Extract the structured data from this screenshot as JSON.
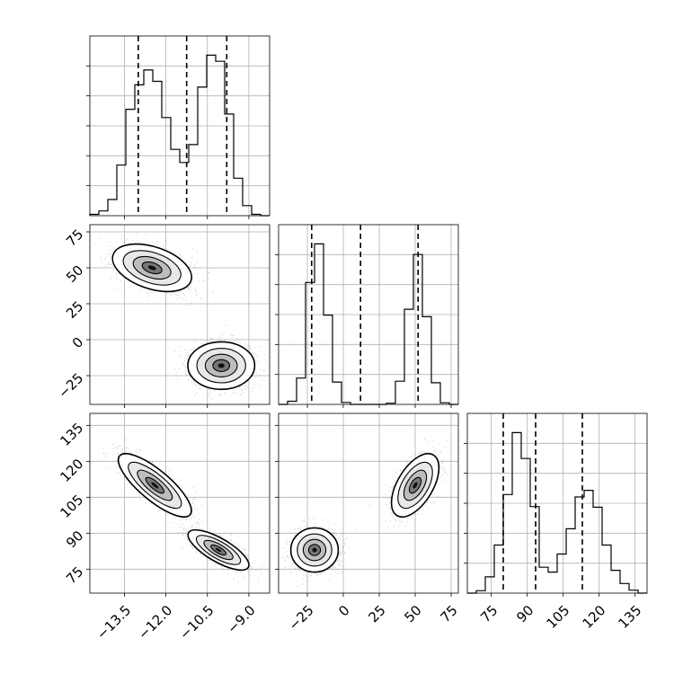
{
  "chart_data": {
    "type": "corner",
    "grid": true,
    "parameters": [
      {
        "range": [
          -14.75,
          -8.25
        ],
        "ticks": [
          -13.5,
          -12.0,
          -10.5,
          -9.0
        ],
        "tick_labels": [
          "−13.5",
          "−12.0",
          "−10.5",
          "−9.0"
        ]
      },
      {
        "range": [
          -45,
          80
        ],
        "ticks": [
          -25,
          0,
          25,
          50,
          75
        ],
        "tick_labels": [
          "−25",
          "0",
          "25",
          "50",
          "75"
        ]
      },
      {
        "range": [
          65,
          140
        ],
        "ticks": [
          75,
          90,
          105,
          120,
          135
        ],
        "tick_labels": [
          "75",
          "90",
          "105",
          "120",
          "135"
        ]
      }
    ],
    "histograms": [
      {
        "parameter": 0,
        "bin_edges": [
          -14.75,
          -14.425,
          -14.1,
          -13.775,
          -13.45,
          -13.125,
          -12.8,
          -12.475,
          -12.15,
          -11.825,
          -11.5,
          -11.175,
          -10.85,
          -10.525,
          -10.2,
          -9.875,
          -9.55,
          -9.225,
          -8.9,
          -8.575,
          -8.25
        ],
        "counts": [
          0.3,
          1.1,
          3.7,
          11.6,
          24.4,
          30.0,
          33.4,
          30.8,
          22.5,
          15.2,
          12.2,
          16.3,
          29.5,
          36.8,
          35.4,
          23.3,
          8.6,
          2.3,
          0.3,
          0.0
        ],
        "quantiles": [
          -13.0,
          -11.25,
          -9.8
        ]
      },
      {
        "parameter": 1,
        "bin_edges": [
          -45,
          -38.75,
          -32.5,
          -26.25,
          -20,
          -13.75,
          -7.5,
          -1.25,
          5,
          11.25,
          17.5,
          23.75,
          30,
          36.25,
          42.5,
          48.75,
          55,
          61.25,
          67.5,
          73.75,
          80
        ],
        "counts": [
          0,
          0.8,
          6.7,
          31.0,
          40.8,
          22.7,
          5.7,
          0.5,
          0,
          0,
          0,
          0,
          0.3,
          5.9,
          24.2,
          38.1,
          22.3,
          5.5,
          0.4,
          0
        ],
        "quantiles": [
          -22,
          12,
          52
        ]
      },
      {
        "parameter": 2,
        "bin_edges": [
          65,
          68.75,
          72.5,
          76.25,
          80,
          83.75,
          87.5,
          91.25,
          95,
          98.75,
          102.5,
          106.25,
          110,
          113.75,
          117.5,
          121.25,
          125,
          128.75,
          132.5,
          136.25,
          140
        ],
        "counts": [
          0.0,
          0.4,
          2.7,
          8.0,
          16.4,
          26.7,
          22.4,
          14.4,
          4.3,
          3.5,
          6.5,
          10.7,
          16.0,
          17.1,
          14.3,
          8.0,
          3.8,
          1.6,
          0.5,
          0.0
        ],
        "quantiles": [
          80,
          93.5,
          113
        ]
      }
    ],
    "hist2d": [
      {
        "x_param": 0,
        "y_param": 1,
        "modes": [
          {
            "center": [
              -12.5,
              50
            ],
            "sx": 0.65,
            "sy": 7.5,
            "rho": -0.4,
            "weight": 0.5
          },
          {
            "center": [
              -10.0,
              -18
            ],
            "sx": 0.55,
            "sy": 7.5,
            "rho": 0.0,
            "weight": 0.5
          }
        ]
      },
      {
        "x_param": 0,
        "y_param": 2,
        "modes": [
          {
            "center": [
              -12.4,
              110
            ],
            "sx": 0.6,
            "sy": 6.0,
            "rho": -0.8,
            "weight": 0.5
          },
          {
            "center": [
              -10.1,
              83
            ],
            "sx": 0.5,
            "sy": 3.8,
            "rho": -0.75,
            "weight": 0.5
          }
        ]
      },
      {
        "x_param": 1,
        "y_param": 2,
        "modes": [
          {
            "center": [
              -20,
              83
            ],
            "sx": 7.5,
            "sy": 4.2,
            "rho": 0.0,
            "weight": 0.5
          },
          {
            "center": [
              50,
              110
            ],
            "sx": 7.5,
            "sy": 6.0,
            "rho": 0.55,
            "weight": 0.5
          }
        ]
      }
    ]
  }
}
